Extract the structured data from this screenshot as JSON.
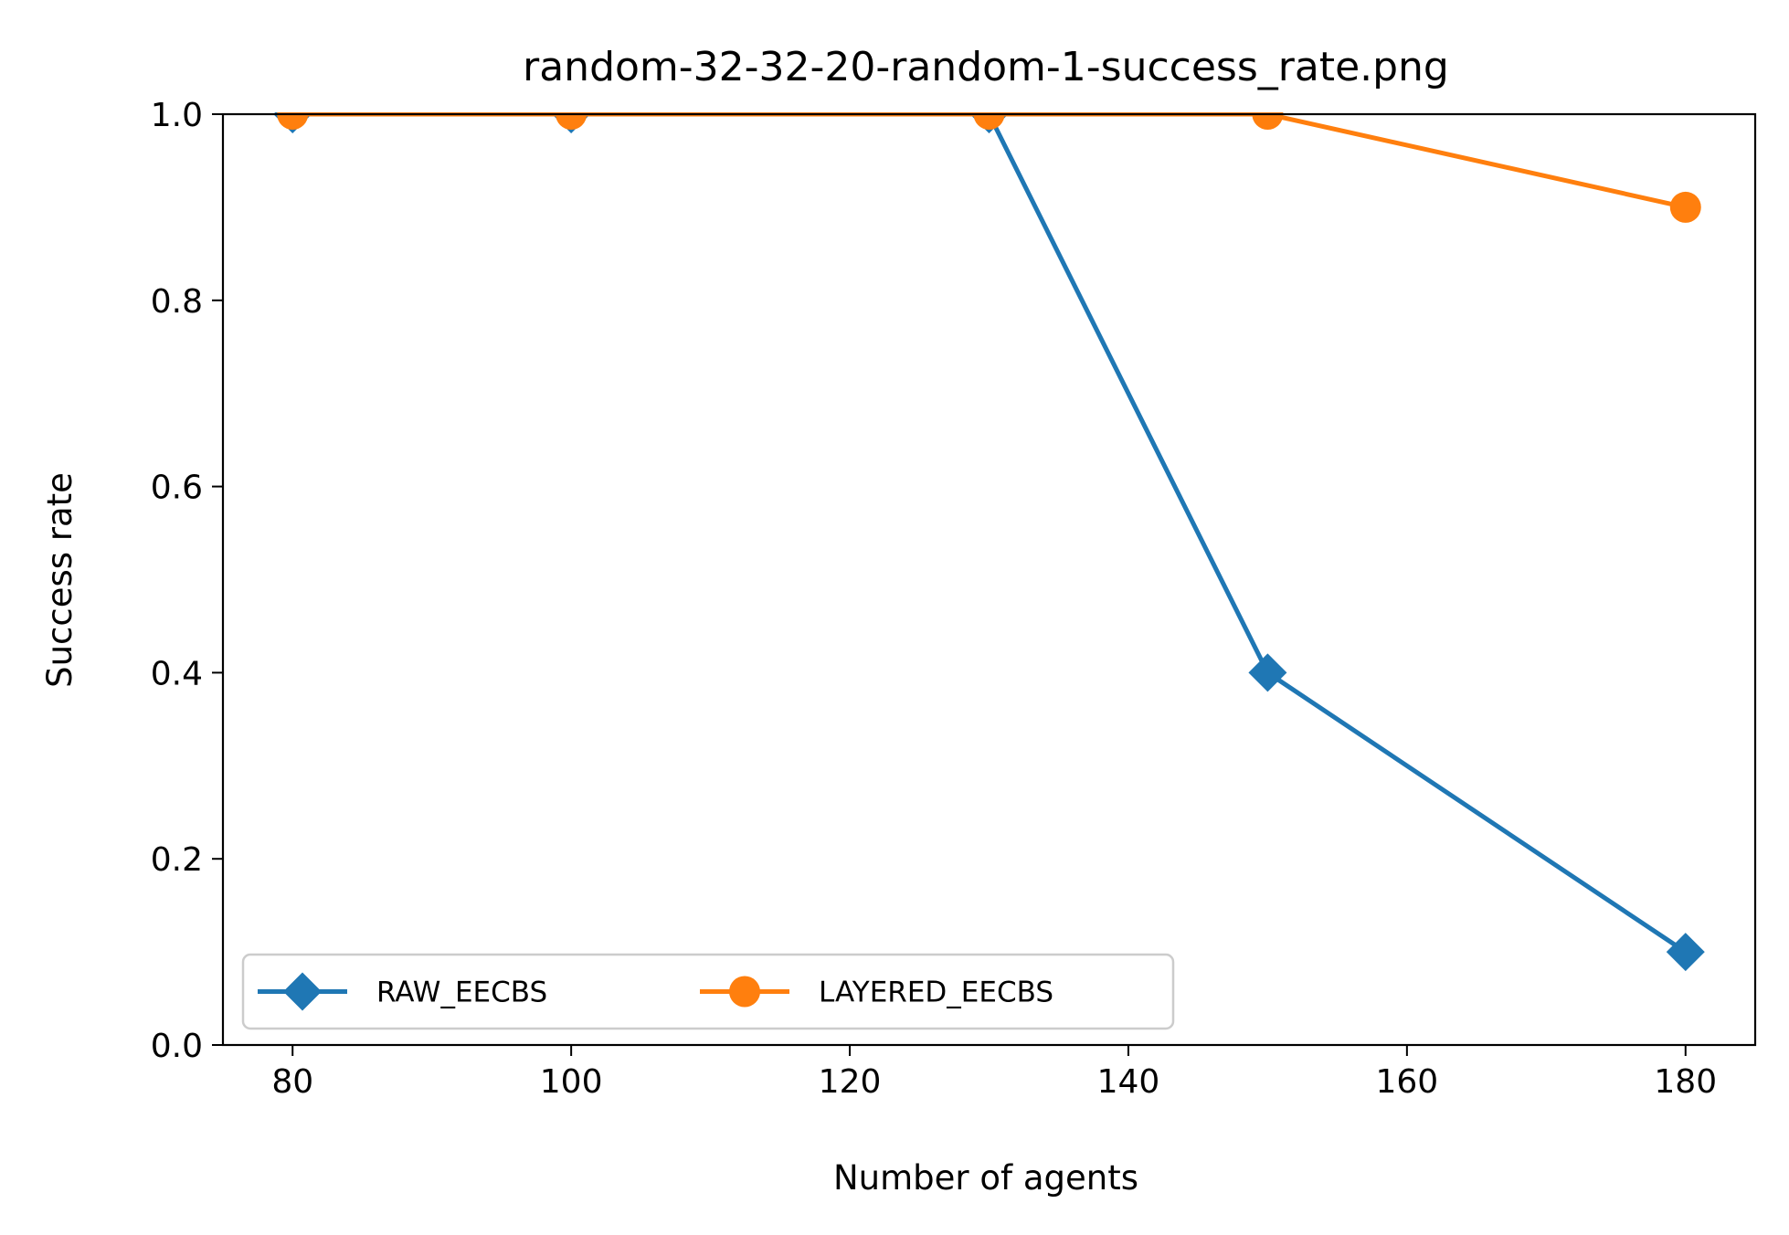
{
  "chart_data": {
    "type": "line",
    "title": "random-32-32-20-random-1-success_rate.png",
    "xlabel": "Number of agents",
    "ylabel": "Success rate",
    "x": [
      80,
      100,
      130,
      150,
      180
    ],
    "xlim": [
      75,
      185
    ],
    "ylim": [
      0.0,
      1.0
    ],
    "xticks": [
      80,
      100,
      120,
      140,
      160,
      180
    ],
    "yticks": [
      0.0,
      0.2,
      0.4,
      0.6,
      0.8,
      1.0
    ],
    "xtick_labels": [
      "80",
      "100",
      "120",
      "140",
      "160",
      "180"
    ],
    "ytick_labels": [
      "0.0",
      "0.2",
      "0.4",
      "0.6",
      "0.8",
      "1.0"
    ],
    "grid": false,
    "legend_position": "lower-left",
    "series": [
      {
        "name": "RAW_EECBS",
        "values": [
          1.0,
          1.0,
          1.0,
          0.4,
          0.1
        ],
        "color": "#1f77b4",
        "marker": "diamond"
      },
      {
        "name": "LAYERED_EECBS",
        "values": [
          1.0,
          1.0,
          1.0,
          1.0,
          0.9
        ],
        "color": "#ff7f0e",
        "marker": "circle"
      }
    ]
  }
}
